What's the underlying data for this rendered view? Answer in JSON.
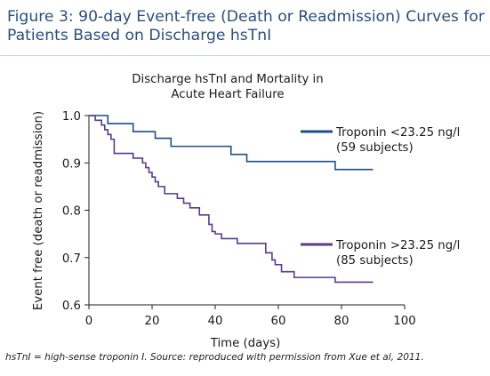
{
  "figure": {
    "title": "Figure 3: 90-day Event-free (Death or Readmission) Curves for Patients Based on Discharge hsTnI",
    "caption": "hsTnI = high-sense troponin I. Source: reproduced with permission from Xue et al, 2011."
  },
  "chart_data": {
    "type": "line",
    "step": true,
    "title": "Discharge hsTnI and Mortality in Acute Heart Failure",
    "title_lines": [
      "Discharge hsTnI and Mortality in",
      "Acute Heart Failure"
    ],
    "xlabel": "Time (days)",
    "ylabel": "Event free (death or readmission)",
    "xlim": [
      0,
      100
    ],
    "ylim": [
      0.6,
      1.0
    ],
    "xticks": [
      0,
      20,
      40,
      60,
      80,
      100
    ],
    "yticks": [
      0.6,
      0.7,
      0.8,
      0.9,
      1.0
    ],
    "ytick_labels": [
      "0.6",
      "0.7",
      "0.8",
      "0.9",
      "1.0"
    ],
    "grid": false,
    "legend_position": "right",
    "series": [
      {
        "name": "Troponin <23.25 ng/l",
        "subtitle": "(59 subjects)",
        "color": "#1f4e8c",
        "x": [
          0,
          2,
          6,
          14,
          21,
          26,
          45,
          50,
          78,
          90
        ],
        "y": [
          1.0,
          1.0,
          0.983,
          0.966,
          0.952,
          0.935,
          0.918,
          0.903,
          0.886,
          0.886
        ]
      },
      {
        "name": "Troponin >23.25 ng/l",
        "subtitle": "(85 subjects)",
        "color": "#5b3a8f",
        "x": [
          0,
          2,
          4,
          5,
          6,
          7,
          8,
          14,
          17,
          18,
          19,
          20,
          21,
          22,
          24,
          28,
          30,
          32,
          35,
          38,
          39,
          40,
          42,
          47,
          56,
          58,
          59,
          61,
          65,
          78,
          90
        ],
        "y": [
          1.0,
          0.99,
          0.98,
          0.97,
          0.96,
          0.95,
          0.92,
          0.91,
          0.9,
          0.89,
          0.88,
          0.87,
          0.86,
          0.85,
          0.835,
          0.825,
          0.815,
          0.805,
          0.79,
          0.77,
          0.755,
          0.75,
          0.74,
          0.73,
          0.71,
          0.695,
          0.685,
          0.67,
          0.658,
          0.648,
          0.648
        ]
      }
    ]
  }
}
